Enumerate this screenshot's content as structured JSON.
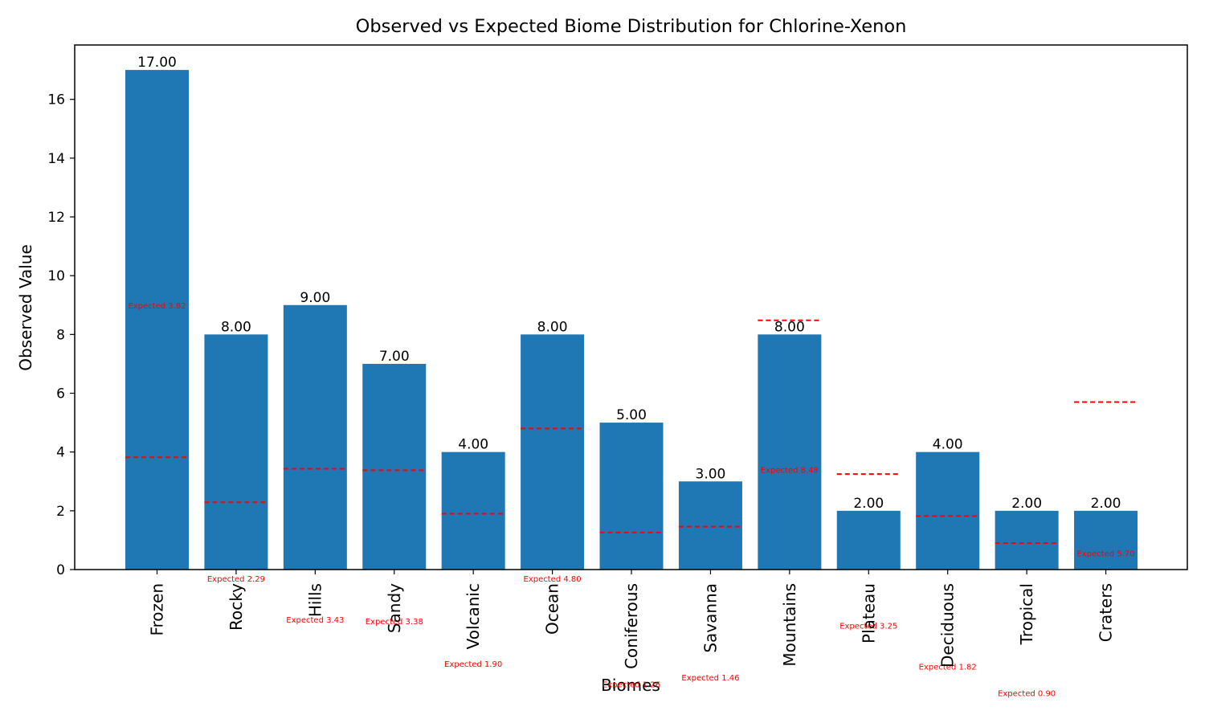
{
  "chart_data": {
    "type": "bar",
    "title": "Observed vs Expected Biome Distribution for Chlorine-Xenon",
    "xlabel": "Biomes",
    "ylabel": "Observed Value",
    "ylim": [
      0,
      17.85
    ],
    "yticks": [
      0,
      2,
      4,
      6,
      8,
      10,
      12,
      14,
      16
    ],
    "grid": false,
    "categories": [
      "Frozen",
      "Rocky",
      "Hills",
      "Sandy",
      "Volcanic",
      "Ocean",
      "Coniferous",
      "Savanna",
      "Mountains",
      "Plateau",
      "Deciduous",
      "Tropical",
      "Craters"
    ],
    "series": [
      {
        "values": [
          17,
          8,
          9,
          7,
          4,
          8,
          5,
          3,
          8,
          2,
          4,
          2,
          2
        ]
      },
      {
        "values": [
          3.82,
          2.29,
          3.43,
          3.38,
          1.9,
          4.8,
          1.26,
          1.46,
          8.48,
          3.25,
          1.82,
          0.9,
          5.7
        ]
      }
    ],
    "value_labels": [
      "17.00",
      "8.00",
      "9.00",
      "7.00",
      "4.00",
      "8.00",
      "5.00",
      "3.00",
      "8.00",
      "2.00",
      "4.00",
      "2.00",
      "2.00"
    ],
    "expected_labels": [
      "Expected 3.82",
      "Expected 2.29",
      "Expected 3.43",
      "Expected 3.38",
      "Expected 1.90",
      "Expected 4.80",
      "Expected 1.26",
      "Expected 1.46",
      "Expected 8.48",
      "Expected 3.25",
      "Expected 1.82",
      "Expected 0.90",
      "Expected 5.70"
    ],
    "expected_label_y": [
      9,
      -0.3,
      -1.7,
      -1.75,
      -3.2,
      -0.3,
      -3.9,
      -3.66,
      3.4,
      -1.9,
      -3.3,
      -4.2,
      0.56
    ],
    "colors": {
      "bar": "#1f77b4",
      "expected": "#ff0000"
    }
  }
}
